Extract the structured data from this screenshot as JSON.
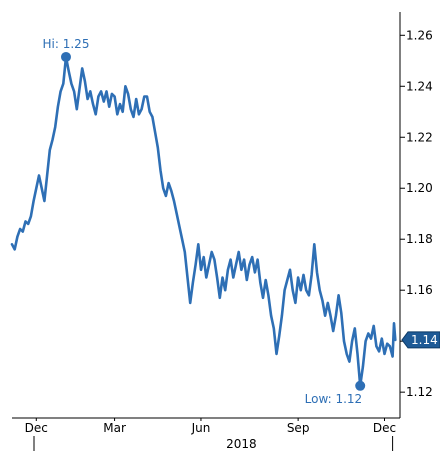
{
  "chart_data": {
    "type": "line",
    "title": "",
    "xlabel": "",
    "ylabel": "",
    "ylim": [
      1.113,
      1.266
    ],
    "y_ticks": [
      1.12,
      1.14,
      1.16,
      1.18,
      1.2,
      1.22,
      1.24,
      1.26
    ],
    "y_tick_labels": [
      "1.12",
      "1.14",
      "1.16",
      "1.18",
      "1.20",
      "1.22",
      "1.24",
      "1.26"
    ],
    "y_axis_side": "right",
    "x_month_labels": [
      {
        "x": 0.09,
        "label": "Dec"
      },
      {
        "x": 0.38,
        "label": "Mar"
      },
      {
        "x": 0.7,
        "label": "Jun"
      },
      {
        "x": 1.06,
        "label": "Sep"
      },
      {
        "x": 1.38,
        "label": "Dec"
      }
    ],
    "x_year_label": {
      "x": 0.85,
      "label": "2018"
    },
    "x_year_boundaries": [
      0.0,
      1.41
    ],
    "xlim": [
      0.0,
      1.43
    ],
    "grid": false,
    "colors": {
      "line": "#2e6fb5",
      "label": "#2e6fb5",
      "axis": "#000000",
      "tick_text": "#000000"
    },
    "high": {
      "x": 0.2,
      "y": 1.2515,
      "label": "Hi: 1.25"
    },
    "low": {
      "x": 1.29,
      "y": 1.1225,
      "label": "Low: 1.12"
    },
    "last": {
      "x": 1.42,
      "y": 1.1405,
      "label": "1.14"
    },
    "series": [
      {
        "values": [
          [
            0.0,
            1.178
          ],
          [
            0.01,
            1.176
          ],
          [
            0.02,
            1.181
          ],
          [
            0.03,
            1.184
          ],
          [
            0.04,
            1.183
          ],
          [
            0.05,
            1.187
          ],
          [
            0.06,
            1.186
          ],
          [
            0.07,
            1.189
          ],
          [
            0.08,
            1.195
          ],
          [
            0.09,
            1.2
          ],
          [
            0.1,
            1.205
          ],
          [
            0.11,
            1.2
          ],
          [
            0.12,
            1.195
          ],
          [
            0.13,
            1.205
          ],
          [
            0.14,
            1.215
          ],
          [
            0.15,
            1.219
          ],
          [
            0.16,
            1.224
          ],
          [
            0.17,
            1.232
          ],
          [
            0.18,
            1.238
          ],
          [
            0.19,
            1.241
          ],
          [
            0.2,
            1.2515
          ],
          [
            0.21,
            1.246
          ],
          [
            0.22,
            1.241
          ],
          [
            0.23,
            1.238
          ],
          [
            0.24,
            1.231
          ],
          [
            0.25,
            1.239
          ],
          [
            0.26,
            1.247
          ],
          [
            0.27,
            1.242
          ],
          [
            0.28,
            1.235
          ],
          [
            0.29,
            1.238
          ],
          [
            0.3,
            1.233
          ],
          [
            0.31,
            1.229
          ],
          [
            0.32,
            1.236
          ],
          [
            0.33,
            1.238
          ],
          [
            0.34,
            1.234
          ],
          [
            0.35,
            1.238
          ],
          [
            0.36,
            1.232
          ],
          [
            0.37,
            1.237
          ],
          [
            0.38,
            1.236
          ],
          [
            0.39,
            1.229
          ],
          [
            0.4,
            1.233
          ],
          [
            0.41,
            1.23
          ],
          [
            0.42,
            1.24
          ],
          [
            0.43,
            1.237
          ],
          [
            0.44,
            1.231
          ],
          [
            0.45,
            1.228
          ],
          [
            0.46,
            1.235
          ],
          [
            0.47,
            1.229
          ],
          [
            0.48,
            1.231
          ],
          [
            0.49,
            1.236
          ],
          [
            0.5,
            1.236
          ],
          [
            0.51,
            1.23
          ],
          [
            0.52,
            1.228
          ],
          [
            0.53,
            1.222
          ],
          [
            0.54,
            1.216
          ],
          [
            0.55,
            1.207
          ],
          [
            0.56,
            1.2
          ],
          [
            0.57,
            1.197
          ],
          [
            0.58,
            1.202
          ],
          [
            0.59,
            1.199
          ],
          [
            0.6,
            1.195
          ],
          [
            0.61,
            1.19
          ],
          [
            0.62,
            1.185
          ],
          [
            0.63,
            1.18
          ],
          [
            0.64,
            1.175
          ],
          [
            0.65,
            1.165
          ],
          [
            0.66,
            1.155
          ],
          [
            0.67,
            1.163
          ],
          [
            0.68,
            1.17
          ],
          [
            0.69,
            1.178
          ],
          [
            0.7,
            1.168
          ],
          [
            0.71,
            1.173
          ],
          [
            0.72,
            1.165
          ],
          [
            0.73,
            1.17
          ],
          [
            0.74,
            1.175
          ],
          [
            0.75,
            1.172
          ],
          [
            0.76,
            1.165
          ],
          [
            0.77,
            1.157
          ],
          [
            0.78,
            1.165
          ],
          [
            0.79,
            1.16
          ],
          [
            0.8,
            1.168
          ],
          [
            0.81,
            1.172
          ],
          [
            0.82,
            1.165
          ],
          [
            0.83,
            1.17
          ],
          [
            0.84,
            1.175
          ],
          [
            0.85,
            1.168
          ],
          [
            0.86,
            1.172
          ],
          [
            0.87,
            1.164
          ],
          [
            0.88,
            1.17
          ],
          [
            0.89,
            1.173
          ],
          [
            0.9,
            1.167
          ],
          [
            0.91,
            1.172
          ],
          [
            0.92,
            1.163
          ],
          [
            0.93,
            1.157
          ],
          [
            0.94,
            1.164
          ],
          [
            0.95,
            1.158
          ],
          [
            0.96,
            1.15
          ],
          [
            0.97,
            1.145
          ],
          [
            0.98,
            1.135
          ],
          [
            0.99,
            1.142
          ],
          [
            1.0,
            1.15
          ],
          [
            1.01,
            1.16
          ],
          [
            1.02,
            1.164
          ],
          [
            1.03,
            1.168
          ],
          [
            1.04,
            1.16
          ],
          [
            1.05,
            1.155
          ],
          [
            1.06,
            1.165
          ],
          [
            1.07,
            1.16
          ],
          [
            1.08,
            1.166
          ],
          [
            1.09,
            1.16
          ],
          [
            1.1,
            1.158
          ],
          [
            1.11,
            1.166
          ],
          [
            1.12,
            1.178
          ],
          [
            1.13,
            1.167
          ],
          [
            1.14,
            1.16
          ],
          [
            1.15,
            1.156
          ],
          [
            1.16,
            1.15
          ],
          [
            1.17,
            1.155
          ],
          [
            1.18,
            1.15
          ],
          [
            1.19,
            1.144
          ],
          [
            1.2,
            1.15
          ],
          [
            1.21,
            1.158
          ],
          [
            1.22,
            1.151
          ],
          [
            1.23,
            1.14
          ],
          [
            1.24,
            1.135
          ],
          [
            1.25,
            1.132
          ],
          [
            1.26,
            1.14
          ],
          [
            1.27,
            1.145
          ],
          [
            1.28,
            1.135
          ],
          [
            1.29,
            1.1225
          ],
          [
            1.3,
            1.13
          ],
          [
            1.31,
            1.14
          ],
          [
            1.32,
            1.143
          ],
          [
            1.33,
            1.141
          ],
          [
            1.34,
            1.146
          ],
          [
            1.35,
            1.138
          ],
          [
            1.36,
            1.136
          ],
          [
            1.37,
            1.141
          ],
          [
            1.38,
            1.135
          ],
          [
            1.39,
            1.139
          ],
          [
            1.4,
            1.138
          ],
          [
            1.41,
            1.134
          ],
          [
            1.415,
            1.147
          ],
          [
            1.42,
            1.1405
          ]
        ]
      }
    ]
  }
}
